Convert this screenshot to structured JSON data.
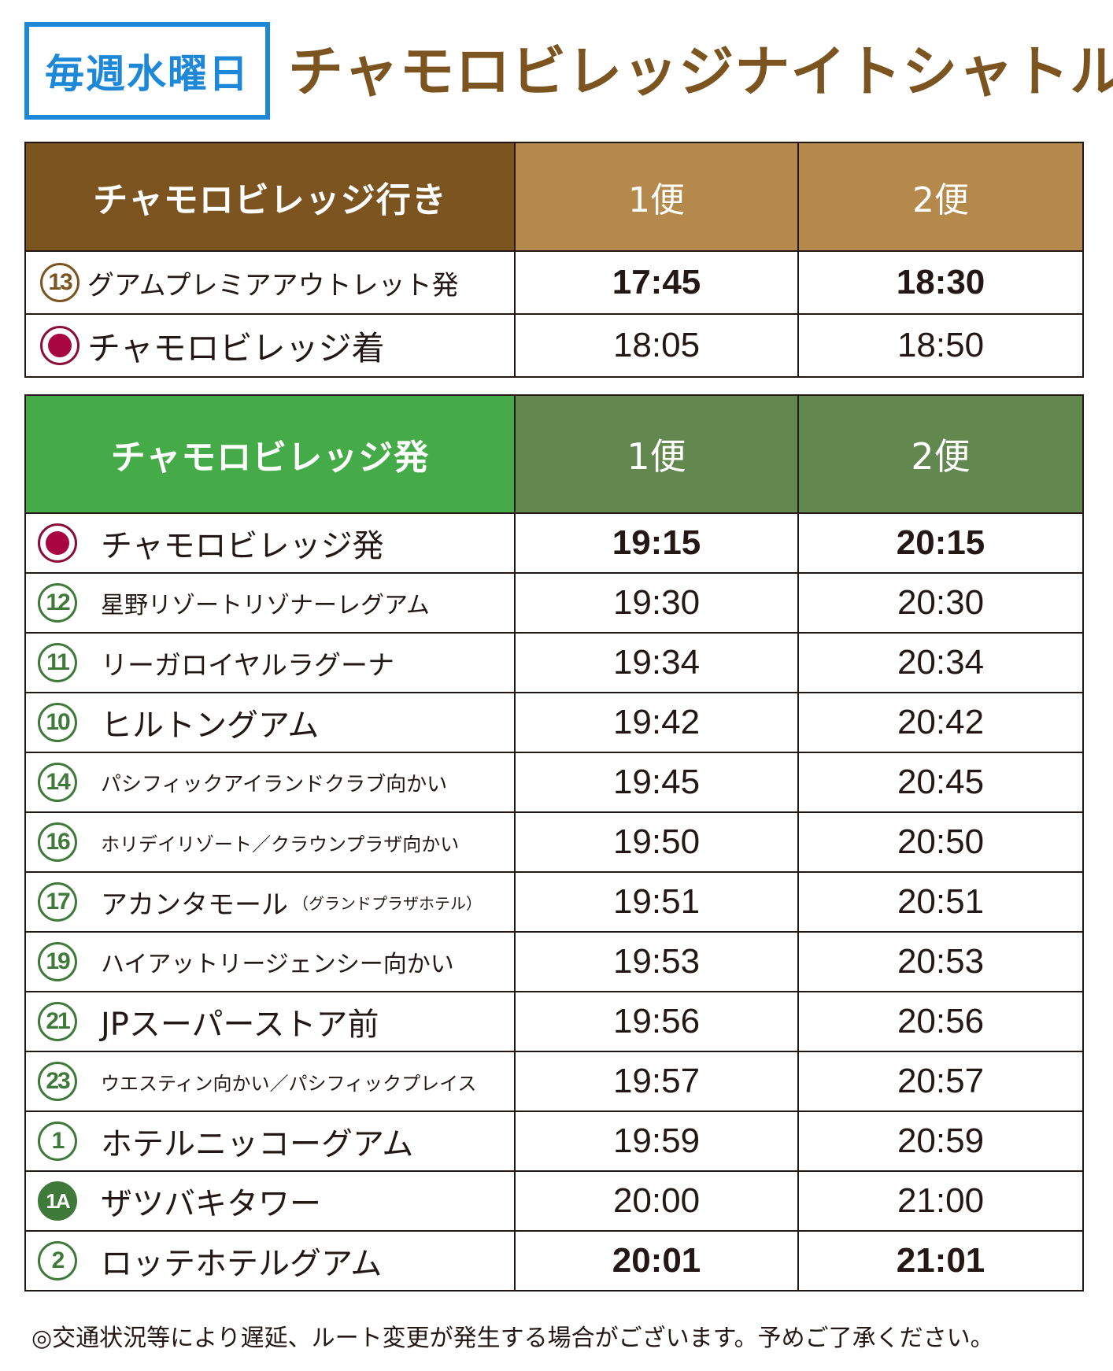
{
  "header": {
    "badge": "毎週水曜日",
    "title": "チャモロビレッジナイトシャトル"
  },
  "to_village": {
    "header": {
      "stop": "チャモロビレッジ行き",
      "trip1": "1便",
      "trip2": "2便"
    },
    "rows": [
      {
        "marker": "13",
        "stop": "グアムプレミアアウトレット発",
        "t1": "17:45",
        "t2": "18:30"
      },
      {
        "marker": "",
        "stop": "チャモロビレッジ着",
        "t1": "18:05",
        "t2": "18:50"
      }
    ]
  },
  "from_village": {
    "header": {
      "stop": "チャモロビレッジ発",
      "trip1": "1便",
      "trip2": "2便"
    },
    "rows": [
      {
        "marker": "",
        "stop": "チャモロビレッジ発",
        "t1": "19:15",
        "t2": "20:15"
      },
      {
        "marker": "12",
        "stop": "星野リゾートリゾナーレグアム",
        "t1": "19:30",
        "t2": "20:30"
      },
      {
        "marker": "11",
        "stop": "リーガロイヤルラグーナ",
        "t1": "19:34",
        "t2": "20:34"
      },
      {
        "marker": "10",
        "stop": "ヒルトングアム",
        "t1": "19:42",
        "t2": "20:42"
      },
      {
        "marker": "14",
        "stop": "パシフィックアイランドクラブ向かい",
        "t1": "19:45",
        "t2": "20:45"
      },
      {
        "marker": "16",
        "stop": "ホリデイリゾート／クラウンプラザ向かい",
        "t1": "19:50",
        "t2": "20:50"
      },
      {
        "marker": "17",
        "stop": "アカンタモール",
        "note": "（グランドプラザホテル）",
        "t1": "19:51",
        "t2": "20:51"
      },
      {
        "marker": "19",
        "stop": "ハイアットリージェンシー向かい",
        "t1": "19:53",
        "t2": "20:53"
      },
      {
        "marker": "21",
        "stop": "JPスーパーストア前",
        "t1": "19:56",
        "t2": "20:56"
      },
      {
        "marker": "23",
        "stop": "ウエスティン向かい／パシフィックプレイス",
        "t1": "19:57",
        "t2": "20:57"
      },
      {
        "marker": "1",
        "stop": "ホテルニッコーグアム",
        "t1": "19:59",
        "t2": "20:59"
      },
      {
        "marker": "1A",
        "stop": "ザツバキタワー",
        "t1": "20:00",
        "t2": "21:00"
      },
      {
        "marker": "2",
        "stop": "ロッテホテルグアム",
        "t1": "20:01",
        "t2": "21:01"
      }
    ]
  },
  "footnote": "◎交通状況等により遅延、ルート変更が発生する場合がございます。予めご了承ください。",
  "colors": {
    "title_brown": "#7b5420",
    "header_tan": "#b5894c",
    "header_green": "#45ab48",
    "header_olive": "#628850",
    "badge_blue": "#1e88d8",
    "destination_marker": "#a8063f",
    "stop_marker_green": "#3f7a3a"
  }
}
